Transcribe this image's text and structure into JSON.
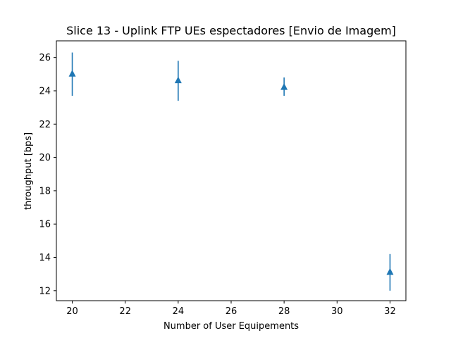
{
  "chart_data": {
    "type": "scatter",
    "title": "Slice 13 - Uplink FTP UEs espectadores [Envio de Imagem]",
    "xlabel": "Number of User Equipements",
    "ylabel": "throughput [bps]",
    "xlim": [
      19.4,
      32.6
    ],
    "ylim": [
      11.4,
      27.0
    ],
    "xticks": [
      20,
      22,
      24,
      26,
      28,
      30,
      32
    ],
    "yticks": [
      12,
      14,
      16,
      18,
      20,
      22,
      24,
      26
    ],
    "grid": false,
    "marker": "triangle-up",
    "color": "#1f77b4",
    "series": [
      {
        "x": [
          20,
          24,
          28,
          32
        ],
        "y": [
          25.0,
          24.6,
          24.2,
          13.1
        ],
        "yerr_low": [
          23.7,
          23.4,
          23.7,
          12.0
        ],
        "yerr_high": [
          26.3,
          25.8,
          24.8,
          14.2
        ]
      }
    ]
  }
}
